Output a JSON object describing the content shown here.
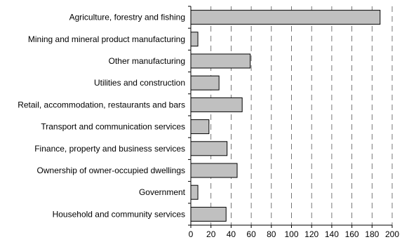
{
  "chart_data": {
    "type": "bar",
    "orientation": "horizontal",
    "categories": [
      "Agriculture, forestry and fishing",
      "Mining and mineral product manufacturing",
      "Other manufacturing",
      "Utilities and construction",
      "Retail, accommodation, restaurants and bars",
      "Transport and communication services",
      "Finance, property and business services",
      "Ownership of owner-occupied dwellings",
      "Government",
      "Household and community services"
    ],
    "values": [
      188,
      7,
      59,
      28,
      51,
      18,
      36,
      46,
      7,
      35
    ],
    "title": "",
    "xlabel": "",
    "ylabel": "",
    "xlim": [
      0,
      200
    ],
    "xticks": [
      0,
      20,
      40,
      60,
      80,
      100,
      120,
      140,
      160,
      180,
      200
    ],
    "grid": "vertical dashed",
    "legend": "none",
    "colors": {
      "bar_fill": "#c0c0c0",
      "bar_stroke": "#000000",
      "grid": "#555555"
    }
  }
}
